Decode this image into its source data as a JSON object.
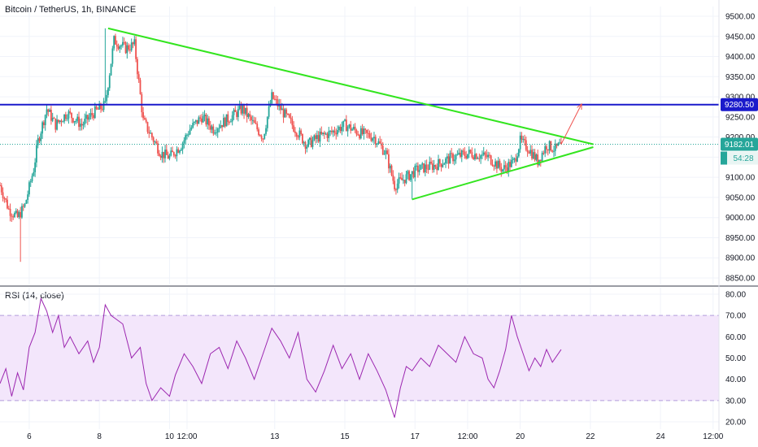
{
  "header": {
    "title": "Bitcoin / TetherUS, 1h, BINANCE",
    "rsi_label": "RSI (14, close)"
  },
  "colors": {
    "up": "#26a69a",
    "down": "#ef5350",
    "triangle": "#33e51f",
    "resistance": "#1a1acb",
    "arrow": "#ef5350",
    "rsi_line": "#9c27b0",
    "rsi_band": "#f3e6fb",
    "price_tag": "#26a69a",
    "resistance_tag": "#1a1acb"
  },
  "chart_data": [
    {
      "type": "candlestick",
      "title": "Bitcoin / TetherUS, 1h, BINANCE",
      "ylim": [
        8830,
        9540
      ],
      "y_ticks": [
        8850,
        8900,
        8950,
        9000,
        9050,
        9100,
        9150,
        9200,
        9250,
        9300,
        9350,
        9400,
        9450,
        9500
      ],
      "y_tick_labels": [
        "8850.00",
        "8900.00",
        "8950.00",
        "9000.00",
        "9050.00",
        "9100.00",
        "9150.00",
        "9200.00",
        "9250.00",
        "9300.00",
        "9350.00",
        "9400.00",
        "9450.00",
        "9500.00"
      ],
      "x_ticks": [
        {
          "label": "6",
          "t": 0
        },
        {
          "label": "8",
          "t": 48
        },
        {
          "label": "10",
          "t": 96
        },
        {
          "label": "12:00",
          "t": 108
        },
        {
          "label": "13",
          "t": 168
        },
        {
          "label": "15",
          "t": 216
        },
        {
          "label": "17",
          "t": 264
        },
        {
          "label": "12:00",
          "t": 300
        },
        {
          "label": "20",
          "t": 336
        },
        {
          "label": "22",
          "t": 384
        },
        {
          "label": "24",
          "t": 432
        },
        {
          "label": "12:00",
          "t": 468
        }
      ],
      "x_unit": "hours from day 6",
      "xlim": [
        -20,
        472
      ],
      "ohlc_anchors": [
        [
          -20,
          9080
        ],
        [
          -14,
          9020
        ],
        [
          -8,
          9000
        ],
        [
          -3,
          9030
        ],
        [
          3,
          9120
        ],
        [
          6,
          9190
        ],
        [
          12,
          9270
        ],
        [
          18,
          9230
        ],
        [
          26,
          9260
        ],
        [
          36,
          9230
        ],
        [
          44,
          9260
        ],
        [
          52,
          9280
        ],
        [
          58,
          9440
        ],
        [
          66,
          9420
        ],
        [
          72,
          9430
        ],
        [
          78,
          9240
        ],
        [
          84,
          9200
        ],
        [
          90,
          9160
        ],
        [
          96,
          9150
        ],
        [
          104,
          9180
        ],
        [
          110,
          9220
        ],
        [
          118,
          9250
        ],
        [
          126,
          9220
        ],
        [
          134,
          9240
        ],
        [
          146,
          9270
        ],
        [
          152,
          9240
        ],
        [
          160,
          9200
        ],
        [
          166,
          9300
        ],
        [
          174,
          9260
        ],
        [
          182,
          9220
        ],
        [
          190,
          9180
        ],
        [
          198,
          9200
        ],
        [
          206,
          9210
        ],
        [
          216,
          9230
        ],
        [
          226,
          9210
        ],
        [
          236,
          9200
        ],
        [
          244,
          9160
        ],
        [
          250,
          9080
        ],
        [
          258,
          9100
        ],
        [
          266,
          9120
        ],
        [
          278,
          9130
        ],
        [
          290,
          9150
        ],
        [
          302,
          9160
        ],
        [
          314,
          9150
        ],
        [
          324,
          9120
        ],
        [
          332,
          9140
        ],
        [
          336,
          9190
        ],
        [
          342,
          9170
        ],
        [
          348,
          9140
        ],
        [
          354,
          9180
        ],
        [
          360,
          9170
        ],
        [
          364,
          9182
        ]
      ],
      "extremes": [
        {
          "t": 52,
          "high": 9470
        },
        {
          "t": -6,
          "low": 8890
        },
        {
          "t": 262,
          "low": 9045
        }
      ],
      "last_price": "9182.01",
      "last_price_value": 9182.01,
      "countdown": "54:28",
      "resistance_level": "9280.50",
      "resistance_value": 9280.5,
      "triangle": {
        "upper": [
          [
            54,
            9470
          ],
          [
            386,
            9182
          ]
        ],
        "lower": [
          [
            262,
            9045
          ],
          [
            386,
            9175
          ]
        ]
      },
      "arrow": {
        "from": [
          364,
          9182
        ],
        "to": [
          378,
          9282
        ]
      }
    },
    {
      "type": "line",
      "name": "RSI (14, close)",
      "ylim": [
        17,
        83
      ],
      "y_ticks": [
        20,
        30,
        40,
        50,
        60,
        70,
        80
      ],
      "y_tick_labels": [
        "20.00",
        "30.00",
        "40.00",
        "50.00",
        "60.00",
        "70.00",
        "80.00"
      ],
      "band": [
        30,
        70
      ],
      "series": [
        {
          "points": [
            [
              -20,
              38
            ],
            [
              -16,
              45
            ],
            [
              -12,
              32
            ],
            [
              -8,
              43
            ],
            [
              -4,
              35
            ],
            [
              0,
              55
            ],
            [
              4,
              62
            ],
            [
              8,
              78
            ],
            [
              12,
              72
            ],
            [
              16,
              62
            ],
            [
              20,
              70
            ],
            [
              24,
              55
            ],
            [
              28,
              60
            ],
            [
              34,
              52
            ],
            [
              40,
              58
            ],
            [
              44,
              48
            ],
            [
              48,
              55
            ],
            [
              52,
              75
            ],
            [
              56,
              70
            ],
            [
              60,
              68
            ],
            [
              64,
              66
            ],
            [
              70,
              50
            ],
            [
              76,
              55
            ],
            [
              80,
              38
            ],
            [
              84,
              30
            ],
            [
              90,
              36
            ],
            [
              96,
              32
            ],
            [
              100,
              42
            ],
            [
              106,
              52
            ],
            [
              112,
              46
            ],
            [
              118,
              38
            ],
            [
              124,
              52
            ],
            [
              130,
              55
            ],
            [
              136,
              45
            ],
            [
              142,
              58
            ],
            [
              148,
              50
            ],
            [
              154,
              40
            ],
            [
              160,
              52
            ],
            [
              166,
              64
            ],
            [
              172,
              58
            ],
            [
              178,
              50
            ],
            [
              184,
              62
            ],
            [
              190,
              40
            ],
            [
              196,
              34
            ],
            [
              202,
              44
            ],
            [
              208,
              56
            ],
            [
              214,
              45
            ],
            [
              220,
              52
            ],
            [
              226,
              40
            ],
            [
              232,
              52
            ],
            [
              238,
              44
            ],
            [
              244,
              35
            ],
            [
              250,
              22
            ],
            [
              254,
              36
            ],
            [
              258,
              46
            ],
            [
              262,
              44
            ],
            [
              268,
              50
            ],
            [
              274,
              46
            ],
            [
              280,
              56
            ],
            [
              286,
              52
            ],
            [
              292,
              48
            ],
            [
              298,
              60
            ],
            [
              304,
              52
            ],
            [
              310,
              50
            ],
            [
              314,
              40
            ],
            [
              318,
              36
            ],
            [
              322,
              44
            ],
            [
              326,
              54
            ],
            [
              330,
              70
            ],
            [
              334,
              60
            ],
            [
              338,
              52
            ],
            [
              342,
              44
            ],
            [
              346,
              50
            ],
            [
              350,
              46
            ],
            [
              354,
              54
            ],
            [
              358,
              48
            ],
            [
              364,
              54
            ]
          ]
        }
      ]
    }
  ]
}
